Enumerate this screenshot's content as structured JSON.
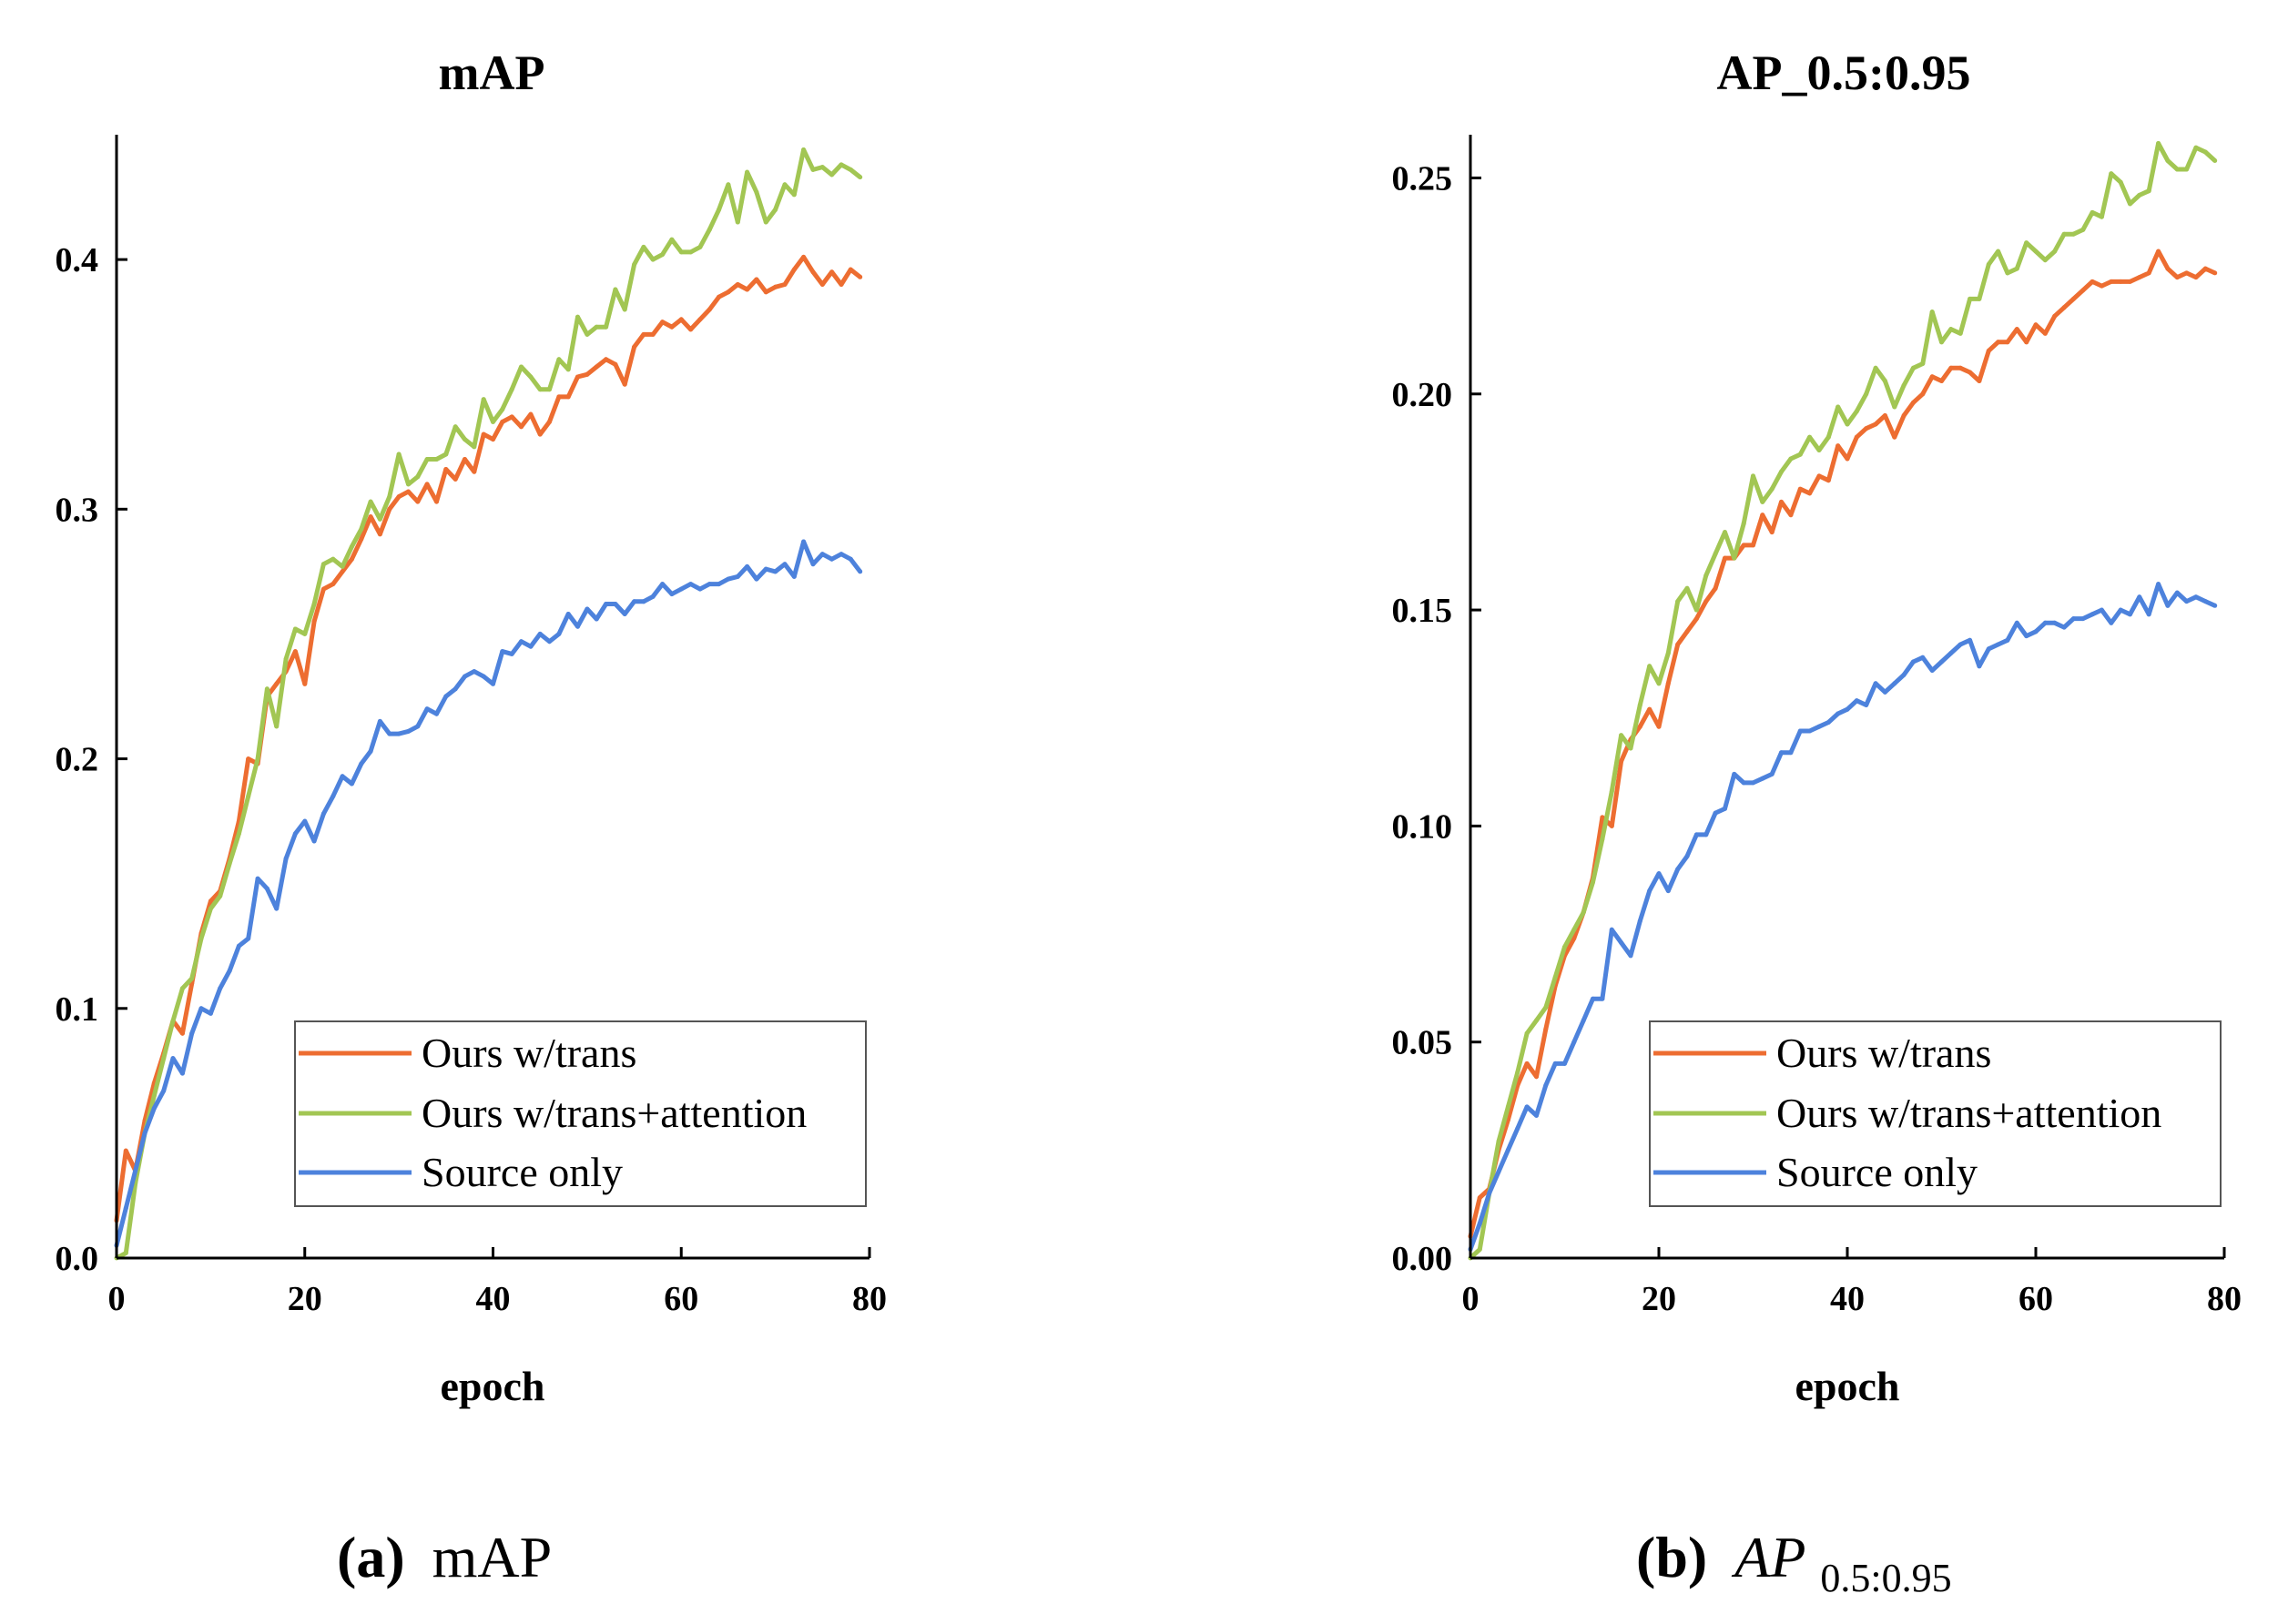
{
  "chart_data": [
    {
      "type": "line",
      "title": "mAP",
      "xlabel": "epoch",
      "ylabel": "",
      "xlim": [
        0,
        80
      ],
      "ylim": [
        0,
        0.45
      ],
      "xticks": [
        0,
        20,
        40,
        60,
        80
      ],
      "xtick_labels": [
        "0",
        "20",
        "40",
        "60",
        "80"
      ],
      "yticks": [
        0,
        0.1,
        0.2,
        0.3,
        0.4
      ],
      "ytick_labels": [
        "0.0",
        "0.1",
        "0.2",
        "0.3",
        "0.4"
      ],
      "legend_position": "bottom-right",
      "caption": {
        "letter": "(a)",
        "text": "mAP"
      },
      "series": [
        {
          "name": "Ours w/trans",
          "color": "#ed6d31",
          "x": [
            0,
            1,
            2,
            3,
            4,
            5,
            6,
            7,
            8,
            9,
            10,
            11,
            12,
            13,
            14,
            15,
            16,
            17,
            18,
            19,
            20,
            21,
            22,
            23,
            24,
            25,
            26,
            27,
            28,
            29,
            30,
            31,
            32,
            33,
            34,
            35,
            36,
            37,
            38,
            39,
            40,
            41,
            42,
            43,
            44,
            45,
            46,
            47,
            48,
            49,
            50,
            51,
            52,
            53,
            54,
            55,
            56,
            57,
            58,
            59,
            60,
            61,
            62,
            63,
            64,
            65,
            66,
            67,
            68,
            69,
            70,
            71,
            72,
            73,
            74,
            75,
            76,
            77,
            78,
            79
          ],
          "values": [
            0.015,
            0.043,
            0.035,
            0.055,
            0.07,
            0.082,
            0.095,
            0.09,
            0.11,
            0.13,
            0.143,
            0.147,
            0.16,
            0.175,
            0.2,
            0.198,
            0.225,
            0.23,
            0.235,
            0.243,
            0.23,
            0.255,
            0.268,
            0.27,
            0.275,
            0.28,
            0.288,
            0.297,
            0.29,
            0.3,
            0.305,
            0.307,
            0.303,
            0.31,
            0.303,
            0.316,
            0.312,
            0.32,
            0.315,
            0.33,
            0.328,
            0.335,
            0.337,
            0.333,
            0.338,
            0.33,
            0.335,
            0.345,
            0.345,
            0.353,
            0.354,
            0.357,
            0.36,
            0.358,
            0.35,
            0.365,
            0.37,
            0.37,
            0.375,
            0.373,
            0.376,
            0.372,
            0.376,
            0.38,
            0.385,
            0.387,
            0.39,
            0.388,
            0.392,
            0.387,
            0.389,
            0.39,
            0.396,
            0.401,
            0.395,
            0.39,
            0.395,
            0.39,
            0.396,
            0.393
          ]
        },
        {
          "name": "Ours w/trans+attention",
          "color": "#a2c653",
          "x": [
            0,
            1,
            2,
            3,
            4,
            5,
            6,
            7,
            8,
            9,
            10,
            11,
            12,
            13,
            14,
            15,
            16,
            17,
            18,
            19,
            20,
            21,
            22,
            23,
            24,
            25,
            26,
            27,
            28,
            29,
            30,
            31,
            32,
            33,
            34,
            35,
            36,
            37,
            38,
            39,
            40,
            41,
            42,
            43,
            44,
            45,
            46,
            47,
            48,
            49,
            50,
            51,
            52,
            53,
            54,
            55,
            56,
            57,
            58,
            59,
            60,
            61,
            62,
            63,
            64,
            65,
            66,
            67,
            68,
            69,
            70,
            71,
            72,
            73,
            74,
            75,
            76,
            77,
            78,
            79
          ],
          "values": [
            0.0,
            0.002,
            0.03,
            0.05,
            0.065,
            0.08,
            0.095,
            0.108,
            0.112,
            0.128,
            0.14,
            0.145,
            0.158,
            0.17,
            0.185,
            0.2,
            0.228,
            0.213,
            0.24,
            0.252,
            0.25,
            0.262,
            0.278,
            0.28,
            0.277,
            0.285,
            0.292,
            0.303,
            0.296,
            0.305,
            0.322,
            0.31,
            0.313,
            0.32,
            0.32,
            0.322,
            0.333,
            0.328,
            0.325,
            0.344,
            0.335,
            0.34,
            0.348,
            0.357,
            0.353,
            0.348,
            0.348,
            0.36,
            0.356,
            0.377,
            0.37,
            0.373,
            0.373,
            0.388,
            0.38,
            0.398,
            0.405,
            0.4,
            0.402,
            0.408,
            0.403,
            0.403,
            0.405,
            0.412,
            0.42,
            0.43,
            0.415,
            0.435,
            0.427,
            0.415,
            0.42,
            0.43,
            0.426,
            0.444,
            0.436,
            0.437,
            0.434,
            0.438,
            0.436,
            0.433
          ]
        },
        {
          "name": "Source only",
          "color": "#4d82dc",
          "x": [
            0,
            1,
            2,
            3,
            4,
            5,
            6,
            7,
            8,
            9,
            10,
            11,
            12,
            13,
            14,
            15,
            16,
            17,
            18,
            19,
            20,
            21,
            22,
            23,
            24,
            25,
            26,
            27,
            28,
            29,
            30,
            31,
            32,
            33,
            34,
            35,
            36,
            37,
            38,
            39,
            40,
            41,
            42,
            43,
            44,
            45,
            46,
            47,
            48,
            49,
            50,
            51,
            52,
            53,
            54,
            55,
            56,
            57,
            58,
            59,
            60,
            61,
            62,
            63,
            64,
            65,
            66,
            67,
            68,
            69,
            70,
            71,
            72,
            73,
            74,
            75,
            76,
            77,
            78,
            79
          ],
          "values": [
            0.005,
            0.02,
            0.035,
            0.05,
            0.06,
            0.067,
            0.08,
            0.074,
            0.09,
            0.1,
            0.098,
            0.108,
            0.115,
            0.125,
            0.128,
            0.152,
            0.148,
            0.14,
            0.16,
            0.17,
            0.175,
            0.167,
            0.178,
            0.185,
            0.193,
            0.19,
            0.198,
            0.203,
            0.215,
            0.21,
            0.21,
            0.211,
            0.213,
            0.22,
            0.218,
            0.225,
            0.228,
            0.233,
            0.235,
            0.233,
            0.23,
            0.243,
            0.242,
            0.247,
            0.245,
            0.25,
            0.247,
            0.25,
            0.258,
            0.253,
            0.26,
            0.256,
            0.262,
            0.262,
            0.258,
            0.263,
            0.263,
            0.265,
            0.27,
            0.266,
            0.268,
            0.27,
            0.268,
            0.27,
            0.27,
            0.272,
            0.273,
            0.277,
            0.272,
            0.276,
            0.275,
            0.278,
            0.273,
            0.287,
            0.278,
            0.282,
            0.28,
            0.282,
            0.28,
            0.275
          ]
        }
      ]
    },
    {
      "type": "line",
      "title": "AP_0.5:0.95",
      "xlabel": "epoch",
      "ylabel": "",
      "xlim": [
        0,
        80
      ],
      "ylim": [
        0,
        0.26
      ],
      "xticks": [
        0,
        20,
        40,
        60,
        80
      ],
      "xtick_labels": [
        "0",
        "20",
        "40",
        "60",
        "80"
      ],
      "yticks": [
        0,
        0.05,
        0.1,
        0.15,
        0.2,
        0.25
      ],
      "ytick_labels": [
        "0.00",
        "0.05",
        "0.10",
        "0.15",
        "0.20",
        "0.25"
      ],
      "legend_position": "bottom-right",
      "caption": {
        "letter": "(b)",
        "text": "AP",
        "subscript": "0.5:0.95"
      },
      "series": [
        {
          "name": "Ours w/trans",
          "color": "#ed6d31",
          "x": [
            0,
            1,
            2,
            3,
            4,
            5,
            6,
            7,
            8,
            9,
            10,
            11,
            12,
            13,
            14,
            15,
            16,
            17,
            18,
            19,
            20,
            21,
            22,
            23,
            24,
            25,
            26,
            27,
            28,
            29,
            30,
            31,
            32,
            33,
            34,
            35,
            36,
            37,
            38,
            39,
            40,
            41,
            42,
            43,
            44,
            45,
            46,
            47,
            48,
            49,
            50,
            51,
            52,
            53,
            54,
            55,
            56,
            57,
            58,
            59,
            60,
            61,
            62,
            63,
            64,
            65,
            66,
            67,
            68,
            69,
            70,
            71,
            72,
            73,
            74,
            75,
            76,
            77,
            78,
            79
          ],
          "values": [
            0.005,
            0.014,
            0.016,
            0.025,
            0.032,
            0.04,
            0.045,
            0.042,
            0.053,
            0.063,
            0.07,
            0.074,
            0.08,
            0.088,
            0.102,
            0.1,
            0.115,
            0.12,
            0.123,
            0.127,
            0.123,
            0.133,
            0.142,
            0.145,
            0.148,
            0.152,
            0.155,
            0.162,
            0.162,
            0.165,
            0.165,
            0.172,
            0.168,
            0.175,
            0.172,
            0.178,
            0.177,
            0.181,
            0.18,
            0.188,
            0.185,
            0.19,
            0.192,
            0.193,
            0.195,
            0.19,
            0.195,
            0.198,
            0.2,
            0.204,
            0.203,
            0.206,
            0.206,
            0.205,
            0.203,
            0.21,
            0.212,
            0.212,
            0.215,
            0.212,
            0.216,
            0.214,
            0.218,
            0.22,
            0.222,
            0.224,
            0.226,
            0.225,
            0.226,
            0.226,
            0.226,
            0.227,
            0.228,
            0.233,
            0.229,
            0.227,
            0.228,
            0.227,
            0.229,
            0.228
          ]
        },
        {
          "name": "Ours w/trans+attention",
          "color": "#a2c653",
          "x": [
            0,
            1,
            2,
            3,
            4,
            5,
            6,
            7,
            8,
            9,
            10,
            11,
            12,
            13,
            14,
            15,
            16,
            17,
            18,
            19,
            20,
            21,
            22,
            23,
            24,
            25,
            26,
            27,
            28,
            29,
            30,
            31,
            32,
            33,
            34,
            35,
            36,
            37,
            38,
            39,
            40,
            41,
            42,
            43,
            44,
            45,
            46,
            47,
            48,
            49,
            50,
            51,
            52,
            53,
            54,
            55,
            56,
            57,
            58,
            59,
            60,
            61,
            62,
            63,
            64,
            65,
            66,
            67,
            68,
            69,
            70,
            71,
            72,
            73,
            74,
            75,
            76,
            77,
            78,
            79
          ],
          "values": [
            0.0,
            0.002,
            0.015,
            0.027,
            0.035,
            0.043,
            0.052,
            0.055,
            0.058,
            0.065,
            0.072,
            0.076,
            0.08,
            0.087,
            0.097,
            0.108,
            0.121,
            0.118,
            0.128,
            0.137,
            0.133,
            0.14,
            0.152,
            0.155,
            0.15,
            0.158,
            0.163,
            0.168,
            0.162,
            0.17,
            0.181,
            0.175,
            0.178,
            0.182,
            0.185,
            0.186,
            0.19,
            0.187,
            0.19,
            0.197,
            0.193,
            0.196,
            0.2,
            0.206,
            0.203,
            0.197,
            0.202,
            0.206,
            0.207,
            0.219,
            0.212,
            0.215,
            0.214,
            0.222,
            0.222,
            0.23,
            0.233,
            0.228,
            0.229,
            0.235,
            0.233,
            0.231,
            0.233,
            0.237,
            0.237,
            0.238,
            0.242,
            0.241,
            0.251,
            0.249,
            0.244,
            0.246,
            0.247,
            0.258,
            0.254,
            0.252,
            0.252,
            0.257,
            0.256,
            0.254
          ]
        },
        {
          "name": "Source only",
          "color": "#4d82dc",
          "x": [
            0,
            1,
            2,
            3,
            4,
            5,
            6,
            7,
            8,
            9,
            10,
            11,
            12,
            13,
            14,
            15,
            16,
            17,
            18,
            19,
            20,
            21,
            22,
            23,
            24,
            25,
            26,
            27,
            28,
            29,
            30,
            31,
            32,
            33,
            34,
            35,
            36,
            37,
            38,
            39,
            40,
            41,
            42,
            43,
            44,
            45,
            46,
            47,
            48,
            49,
            50,
            51,
            52,
            53,
            54,
            55,
            56,
            57,
            58,
            59,
            60,
            61,
            62,
            63,
            64,
            65,
            66,
            67,
            68,
            69,
            70,
            71,
            72,
            73,
            74,
            75,
            76,
            77,
            78,
            79
          ],
          "values": [
            0.002,
            0.008,
            0.015,
            0.02,
            0.025,
            0.03,
            0.035,
            0.033,
            0.04,
            0.045,
            0.045,
            0.05,
            0.055,
            0.06,
            0.06,
            0.076,
            0.073,
            0.07,
            0.078,
            0.085,
            0.089,
            0.085,
            0.09,
            0.093,
            0.098,
            0.098,
            0.103,
            0.104,
            0.112,
            0.11,
            0.11,
            0.111,
            0.112,
            0.117,
            0.117,
            0.122,
            0.122,
            0.123,
            0.124,
            0.126,
            0.127,
            0.129,
            0.128,
            0.133,
            0.131,
            0.133,
            0.135,
            0.138,
            0.139,
            0.136,
            0.138,
            0.14,
            0.142,
            0.143,
            0.137,
            0.141,
            0.142,
            0.143,
            0.147,
            0.144,
            0.145,
            0.147,
            0.147,
            0.146,
            0.148,
            0.148,
            0.149,
            0.15,
            0.147,
            0.15,
            0.149,
            0.153,
            0.149,
            0.156,
            0.151,
            0.154,
            0.152,
            0.153,
            0.152,
            0.151
          ]
        }
      ]
    }
  ]
}
